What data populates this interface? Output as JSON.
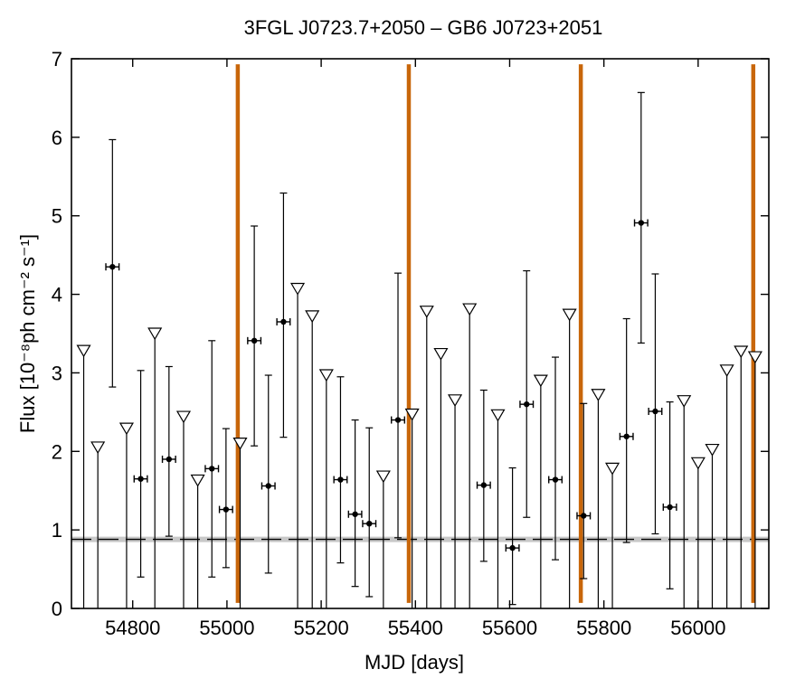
{
  "chart_data": {
    "type": "scatter",
    "title": "3FGL J0723.7+2050 – GB6 J0723+2051",
    "xlabel": "MJD [days]",
    "ylabel": "Flux [10⁻⁸ph cm⁻² s⁻¹]",
    "xlim": [
      54670,
      56150
    ],
    "ylim": [
      0,
      7
    ],
    "x_ticks": [
      54800,
      55000,
      55200,
      55400,
      55600,
      55800,
      56000
    ],
    "y_ticks": [
      0,
      1,
      2,
      3,
      4,
      5,
      6,
      7
    ],
    "grid": false,
    "baseline_flux": 0.88,
    "colors": {
      "points": "#000000",
      "event_lines": "#c8660a",
      "baseline_band": "#c8c8c8"
    },
    "detections": [
      {
        "x": 54757,
        "y": 4.35,
        "ylo": 2.82,
        "yhi": 5.97,
        "xerr": 14
      },
      {
        "x": 54817,
        "y": 1.65,
        "ylo": 0.4,
        "yhi": 3.03,
        "xerr": 14
      },
      {
        "x": 54877,
        "y": 1.9,
        "ylo": 0.92,
        "yhi": 3.08,
        "xerr": 14
      },
      {
        "x": 54968,
        "y": 1.78,
        "ylo": 0.4,
        "yhi": 3.41,
        "xerr": 14
      },
      {
        "x": 54998,
        "y": 1.26,
        "ylo": 0.52,
        "yhi": 2.29,
        "xerr": 14
      },
      {
        "x": 55058,
        "y": 3.41,
        "ylo": 2.07,
        "yhi": 4.87,
        "xerr": 14
      },
      {
        "x": 55088,
        "y": 1.56,
        "ylo": 0.45,
        "yhi": 2.97,
        "xerr": 14
      },
      {
        "x": 55120,
        "y": 3.65,
        "ylo": 2.18,
        "yhi": 5.29,
        "xerr": 14
      },
      {
        "x": 55241,
        "y": 1.64,
        "ylo": 0.58,
        "yhi": 2.95,
        "xerr": 14
      },
      {
        "x": 55272,
        "y": 1.2,
        "ylo": 0.28,
        "yhi": 2.4,
        "xerr": 14
      },
      {
        "x": 55302,
        "y": 1.08,
        "ylo": 0.15,
        "yhi": 2.3,
        "xerr": 14
      },
      {
        "x": 55363,
        "y": 2.4,
        "ylo": 0.9,
        "yhi": 4.27,
        "xerr": 14
      },
      {
        "x": 55545,
        "y": 1.57,
        "ylo": 0.6,
        "yhi": 2.78,
        "xerr": 14
      },
      {
        "x": 55606,
        "y": 0.77,
        "ylo": 0.05,
        "yhi": 1.79,
        "xerr": 14
      },
      {
        "x": 55636,
        "y": 2.6,
        "ylo": 1.16,
        "yhi": 4.3,
        "xerr": 14
      },
      {
        "x": 55697,
        "y": 1.64,
        "ylo": 0.62,
        "yhi": 3.2,
        "xerr": 14
      },
      {
        "x": 55757,
        "y": 1.18,
        "ylo": 0.38,
        "yhi": 2.61,
        "xerr": 14
      },
      {
        "x": 55848,
        "y": 2.19,
        "ylo": 0.84,
        "yhi": 3.69,
        "xerr": 14
      },
      {
        "x": 55879,
        "y": 4.91,
        "ylo": 3.38,
        "yhi": 6.57,
        "xerr": 14
      },
      {
        "x": 55909,
        "y": 2.51,
        "ylo": 0.95,
        "yhi": 4.26,
        "xerr": 14
      },
      {
        "x": 55940,
        "y": 1.29,
        "ylo": 0.25,
        "yhi": 2.63,
        "xerr": 14
      }
    ],
    "upper_limits": [
      {
        "x": 54696,
        "y": 3.28
      },
      {
        "x": 54726,
        "y": 2.05
      },
      {
        "x": 54787,
        "y": 2.29
      },
      {
        "x": 54847,
        "y": 3.5
      },
      {
        "x": 54908,
        "y": 2.44
      },
      {
        "x": 54938,
        "y": 1.63
      },
      {
        "x": 55028,
        "y": 2.1
      },
      {
        "x": 55150,
        "y": 4.07
      },
      {
        "x": 55181,
        "y": 3.72
      },
      {
        "x": 55211,
        "y": 2.97
      },
      {
        "x": 55332,
        "y": 1.68
      },
      {
        "x": 55393,
        "y": 2.47
      },
      {
        "x": 55424,
        "y": 3.78
      },
      {
        "x": 55454,
        "y": 3.24
      },
      {
        "x": 55484,
        "y": 2.65
      },
      {
        "x": 55515,
        "y": 3.81
      },
      {
        "x": 55575,
        "y": 2.46
      },
      {
        "x": 55666,
        "y": 2.9
      },
      {
        "x": 55727,
        "y": 3.74
      },
      {
        "x": 55788,
        "y": 2.72
      },
      {
        "x": 55818,
        "y": 1.78
      },
      {
        "x": 55970,
        "y": 2.64
      },
      {
        "x": 56000,
        "y": 1.85
      },
      {
        "x": 56030,
        "y": 2.02
      },
      {
        "x": 56061,
        "y": 3.03
      },
      {
        "x": 56091,
        "y": 3.27
      },
      {
        "x": 56121,
        "y": 3.2
      }
    ],
    "event_lines": [
      55023,
      55386,
      55751,
      56117
    ]
  }
}
